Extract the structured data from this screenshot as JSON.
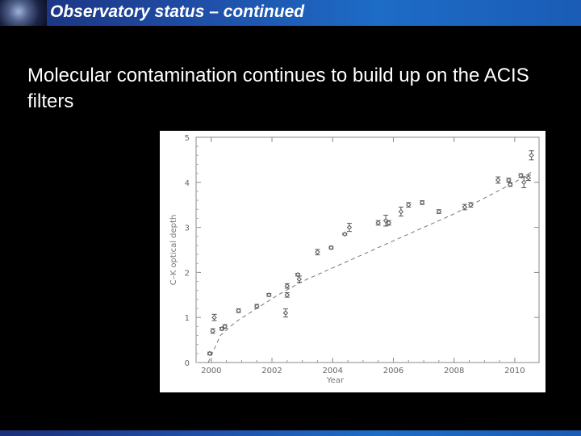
{
  "header": {
    "title": "Observatory status – continued"
  },
  "body": {
    "text": "Molecular contamination continues to build up on the ACIS filters"
  },
  "colors": {
    "header_bar": "#1f4fa8",
    "background": "#000000",
    "plot_bg": "#ffffff",
    "plot_ink": "#555555"
  },
  "chart_data": {
    "type": "scatter",
    "title": "",
    "xlabel": "Year",
    "ylabel": "C–K optical depth",
    "xlim": [
      1999.5,
      2010.8
    ],
    "ylim": [
      0,
      5
    ],
    "xticks": [
      "2000",
      "2002",
      "2004",
      "2006",
      "2008",
      "2010"
    ],
    "yticks": [
      "0",
      "1",
      "2",
      "3",
      "4",
      "5"
    ],
    "grid": false,
    "series": [
      {
        "x": [
          1999.95,
          2000.05,
          2000.1,
          2000.35,
          2000.45,
          2000.9,
          2001.5,
          2001.9,
          2002.45,
          2002.5,
          2002.5,
          2002.85,
          2002.9,
          2003.5,
          2003.95,
          2004.4,
          2004.55,
          2005.5,
          2005.75,
          2005.85,
          2006.25,
          2006.5,
          2006.95,
          2007.5,
          2008.35,
          2008.55,
          2009.45,
          2009.8,
          2009.85,
          2010.2,
          2010.3,
          2010.45,
          2010.55
        ],
        "y": [
          0.2,
          0.7,
          1.0,
          0.75,
          0.8,
          1.15,
          1.25,
          1.5,
          1.1,
          1.5,
          1.7,
          1.95,
          1.85,
          2.45,
          2.55,
          2.85,
          3.0,
          3.1,
          3.15,
          3.1,
          3.35,
          3.5,
          3.55,
          3.35,
          3.45,
          3.5,
          4.05,
          4.05,
          3.95,
          4.15,
          4.0,
          4.1,
          4.6
        ],
        "err": [
          0.03,
          0.05,
          0.07,
          0.03,
          0.04,
          0.04,
          0.04,
          0.03,
          0.09,
          0.05,
          0.05,
          0.03,
          0.07,
          0.06,
          0.03,
          0.02,
          0.09,
          0.05,
          0.12,
          0.05,
          0.1,
          0.05,
          0.04,
          0.04,
          0.06,
          0.05,
          0.07,
          0.04,
          0.04,
          0.04,
          0.12,
          0.06,
          0.1
        ]
      }
    ],
    "trend_line_x": [
      1999.9,
      2000.3,
      2000.8,
      2001.5,
      2002.2,
      2003.0,
      2004.0,
      2005.0,
      2006.0,
      2007.0,
      2008.0,
      2009.0,
      2010.0,
      2010.6
    ],
    "trend_line_y": [
      0.0,
      0.6,
      0.9,
      1.2,
      1.5,
      1.8,
      2.1,
      2.4,
      2.7,
      3.0,
      3.3,
      3.65,
      4.0,
      4.25
    ]
  }
}
